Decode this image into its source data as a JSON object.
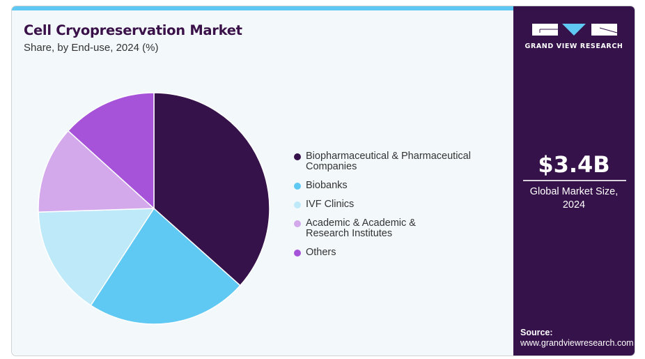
{
  "header": {
    "title": "Cell Cryopreservation Market",
    "subtitle": "Share, by End-use, 2024 (%)"
  },
  "brand": {
    "name": "GRAND VIEW RESEARCH",
    "logo_icon": "gvr-logo-icon"
  },
  "side_panel": {
    "market_size": "$3.4B",
    "market_size_label_line1": "Global Market Size,",
    "market_size_label_line2": "2024",
    "source_label": "Source:",
    "source_url": "www.grandviewresearch.com"
  },
  "colors": {
    "accent_bar": "#5fc9f3",
    "panel": "#36124a"
  },
  "chart_data": {
    "type": "pie",
    "title": "Cell Cryopreservation Market",
    "subtitle": "Share, by End-use, 2024 (%)",
    "legend_position": "right",
    "start_angle_deg": 0,
    "direction": "clockwise",
    "slices": [
      {
        "label_line1": "Biopharmaceutical & Pharmaceutical",
        "label_line2": "Companies",
        "value": 36.6,
        "color": "#36124a"
      },
      {
        "label_line1": "Biobanks",
        "label_line2": "",
        "value": 22.6,
        "color": "#5fc9f3"
      },
      {
        "label_line1": "IVF Clinics",
        "label_line2": "",
        "value": 15.3,
        "color": "#bde9f9"
      },
      {
        "label_line1": "Academic & Academic &",
        "label_line2": "Research Institutes",
        "value": 12.2,
        "color": "#d3a9ec"
      },
      {
        "label_line1": "Others",
        "label_line2": "",
        "value": 13.3,
        "color": "#a653d9"
      }
    ]
  }
}
